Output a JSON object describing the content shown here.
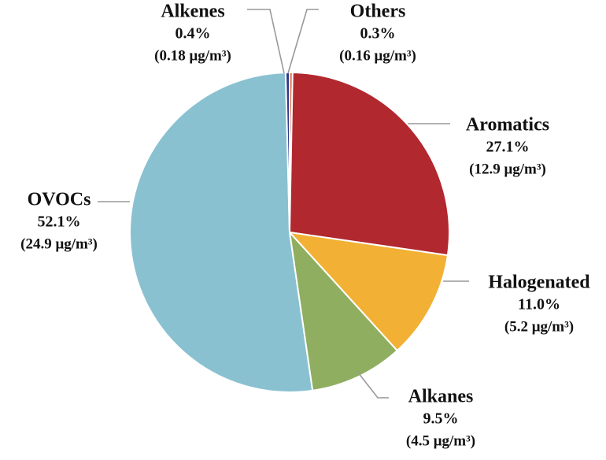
{
  "chart_data": {
    "type": "pie",
    "categories": [
      "Others",
      "Aromatics",
      "Halogenated",
      "Alkanes",
      "OVOCs",
      "Alkenes"
    ],
    "values": [
      0.3,
      27.1,
      11.0,
      9.5,
      52.1,
      0.4
    ],
    "value_labels": [
      "0.3%",
      "27.1%",
      "11.0%",
      "9.5%",
      "52.1%",
      "0.4%"
    ],
    "concentration_labels": [
      "(0.16 μg/m³)",
      "(12.9 μg/m³)",
      "(5.2 μg/m³)",
      "(4.5 μg/m³)",
      "(24.9 μg/m³)",
      "(0.18 μg/m³)"
    ],
    "colors": [
      "#e0592c",
      "#b1282f",
      "#f2b134",
      "#8fae60",
      "#8ac1d1",
      "#2e3a8c"
    ]
  }
}
